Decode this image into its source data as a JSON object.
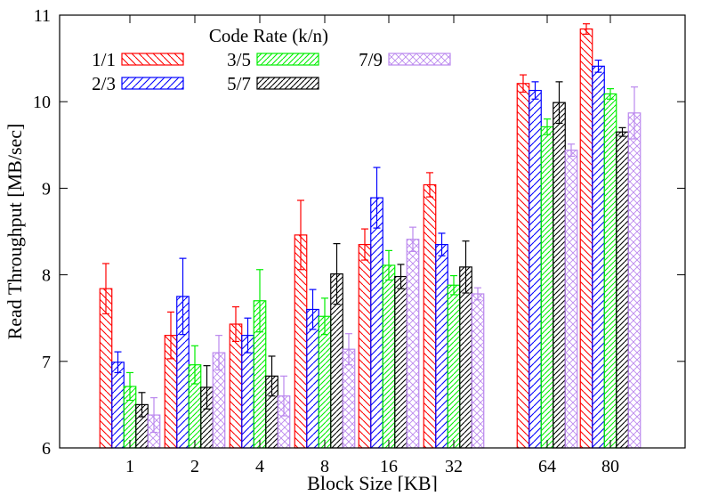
{
  "chart_data": {
    "type": "bar",
    "xlabel": "Block Size [KB]",
    "ylabel": "Read Throughput [MB/sec]",
    "ylim": [
      6,
      11
    ],
    "yticks": [
      6,
      7,
      8,
      9,
      10,
      11
    ],
    "categories": [
      "1",
      "2",
      "4",
      "8",
      "16",
      "32",
      "64",
      "80"
    ],
    "grid": false,
    "legend": {
      "title": "Code Rate (k/n)",
      "placement": "top-left"
    },
    "series": [
      {
        "name": "1/1",
        "color": "#ff0000",
        "pattern": "hatch-back",
        "values": [
          7.84,
          7.3,
          7.43,
          8.46,
          8.35,
          9.04,
          10.21,
          10.84
        ],
        "err": [
          0.29,
          0.27,
          0.2,
          0.4,
          0.18,
          0.14,
          0.1,
          0.06
        ]
      },
      {
        "name": "2/3",
        "color": "#0000ff",
        "pattern": "hatch-fwd",
        "values": [
          6.99,
          7.75,
          7.3,
          7.6,
          8.89,
          8.35,
          10.13,
          10.41
        ],
        "err": [
          0.12,
          0.44,
          0.2,
          0.23,
          0.35,
          0.13,
          0.1,
          0.07
        ]
      },
      {
        "name": "3/5",
        "color": "#00ee00",
        "pattern": "hatch-fwd-dense",
        "values": [
          6.71,
          6.96,
          7.7,
          7.52,
          8.11,
          7.88,
          9.71,
          10.09
        ],
        "err": [
          0.16,
          0.22,
          0.36,
          0.21,
          0.17,
          0.11,
          0.09,
          0.06
        ]
      },
      {
        "name": "5/7",
        "color": "#000000",
        "pattern": "hatch-fwd-dense",
        "values": [
          6.5,
          6.7,
          6.83,
          8.01,
          7.98,
          8.09,
          9.99,
          9.65
        ],
        "err": [
          0.14,
          0.25,
          0.23,
          0.35,
          0.14,
          0.3,
          0.24,
          0.05
        ]
      },
      {
        "name": "7/9",
        "color": "#bb88ee",
        "pattern": "crosshatch",
        "values": [
          6.38,
          7.1,
          6.6,
          7.14,
          8.41,
          7.78,
          9.44,
          9.87
        ],
        "err": [
          0.2,
          0.2,
          0.23,
          0.18,
          0.14,
          0.07,
          0.07,
          0.3
        ]
      }
    ]
  }
}
